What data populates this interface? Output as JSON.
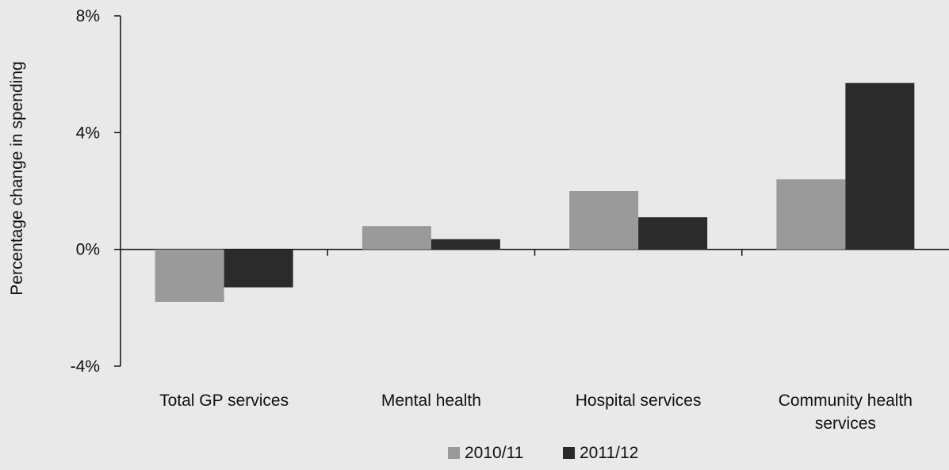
{
  "chart_data": {
    "type": "bar",
    "title": "",
    "ylabel": "Percentage change in spending",
    "xlabel": "",
    "categories": [
      "Total GP services",
      "Mental health",
      "Hospital services",
      "Community health services"
    ],
    "category_lines": [
      [
        "Total GP services"
      ],
      [
        "Mental health"
      ],
      [
        "Hospital services"
      ],
      [
        "Community health",
        "services"
      ]
    ],
    "series": [
      {
        "name": "2010/11",
        "color": "#9a9a9a",
        "values": [
          -1.8,
          0.8,
          2.0,
          2.4
        ]
      },
      {
        "name": "2011/12",
        "color": "#2b2b2b",
        "values": [
          -1.3,
          0.35,
          1.1,
          5.7
        ]
      }
    ],
    "ylim": [
      -4,
      8
    ],
    "yticks": [
      -4,
      0,
      4,
      8
    ],
    "ytick_labels": [
      "-4%",
      "0%",
      "4%",
      "8%"
    ],
    "grid": false,
    "legend": "bottom-center"
  }
}
